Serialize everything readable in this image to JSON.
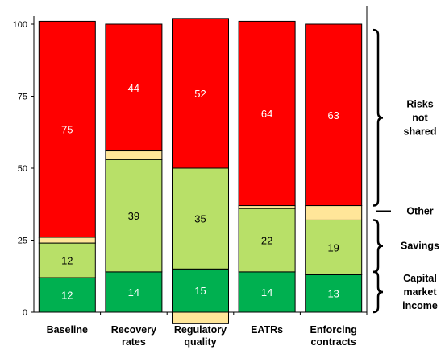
{
  "chart_data": {
    "type": "bar",
    "stacked": true,
    "title": "",
    "xlabel": "",
    "ylabel": "",
    "ylim": [
      0,
      100
    ],
    "yticks": [
      0,
      25,
      50,
      75,
      100
    ],
    "grid": false,
    "legend": "none",
    "categories": [
      "Baseline",
      "Recovery rates",
      "Regulatory quality",
      "EATRs",
      "Enforcing contracts"
    ],
    "series": [
      {
        "key": "capital",
        "color": "#00b050",
        "labelColor": "#ffffff",
        "values": [
          12,
          14,
          15,
          14,
          13
        ],
        "labels": [
          "12",
          "14",
          "15",
          "14",
          "13"
        ]
      },
      {
        "key": "savings",
        "color": "#b8e068",
        "labelColor": "#000000",
        "values": [
          12,
          39,
          35,
          22,
          19
        ],
        "labels": [
          "12",
          "39",
          "35",
          "22",
          "19"
        ]
      },
      {
        "key": "other",
        "color": "#ffe699",
        "labelColor": "#000000",
        "values": [
          2,
          3,
          -4,
          1,
          5
        ],
        "labels": [
          "",
          "",
          "",
          "",
          ""
        ]
      },
      {
        "key": "risks",
        "color": "#ff0000",
        "labelColor": "#ffffff",
        "values": [
          75,
          44,
          52,
          64,
          63
        ],
        "labels": [
          "75",
          "44",
          "52",
          "64",
          "63"
        ]
      }
    ],
    "brace_groups": [
      {
        "label_lines": [
          "Risks",
          "not",
          "shared"
        ],
        "range": [
          37,
          98
        ],
        "style": "brace"
      },
      {
        "label_lines": [
          "Other"
        ],
        "range": [
          35,
          35
        ],
        "style": "dash"
      },
      {
        "label_lines": [
          "Savings"
        ],
        "range": [
          14,
          32
        ],
        "style": "brace"
      },
      {
        "label_lines": [
          "Capital",
          "market",
          "income"
        ],
        "range": [
          0,
          14
        ],
        "style": "brace"
      }
    ]
  }
}
